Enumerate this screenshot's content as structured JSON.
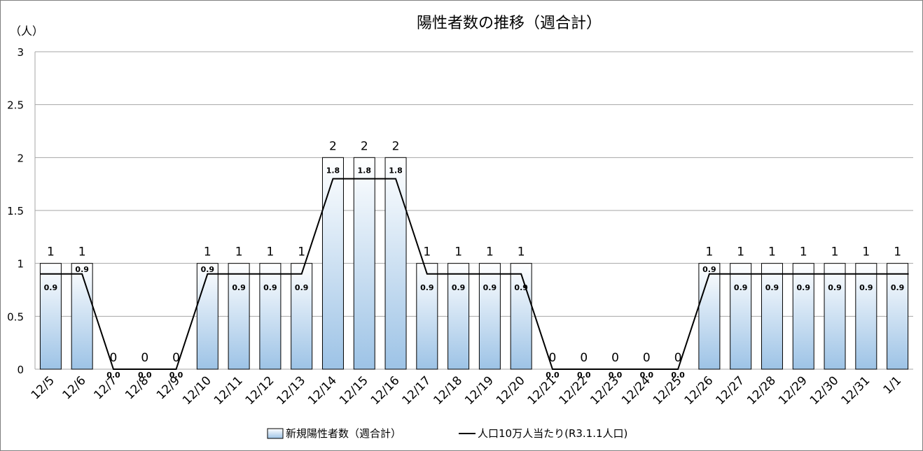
{
  "chart_data": {
    "type": "bar",
    "title": "陽性者数の推移（週合計）",
    "y_unit_label": "（人）",
    "ylim": [
      0,
      3
    ],
    "yticks": [
      "0",
      "0.5",
      "1",
      "1.5",
      "2",
      "2.5",
      "3"
    ],
    "grid": true,
    "legend_position": "bottom",
    "categories": [
      "12/5",
      "12/6",
      "12/7",
      "12/8",
      "12/9",
      "12/10",
      "12/11",
      "12/12",
      "12/13",
      "12/14",
      "12/15",
      "12/16",
      "12/17",
      "12/18",
      "12/19",
      "12/20",
      "12/21",
      "12/22",
      "12/23",
      "12/24",
      "12/25",
      "12/26",
      "12/27",
      "12/28",
      "12/29",
      "12/30",
      "12/31",
      "1/1"
    ],
    "series": [
      {
        "name": "新規陽性者数（週合計）",
        "kind": "bar",
        "values": [
          1,
          1,
          0,
          0,
          0,
          1,
          1,
          1,
          1,
          2,
          2,
          2,
          1,
          1,
          1,
          1,
          0,
          0,
          0,
          0,
          0,
          1,
          1,
          1,
          1,
          1,
          1,
          1
        ],
        "labels": [
          "1",
          "1",
          "0",
          "0",
          "0",
          "1",
          "1",
          "1",
          "1",
          "2",
          "2",
          "2",
          "1",
          "1",
          "1",
          "1",
          "0",
          "0",
          "0",
          "0",
          "0",
          "1",
          "1",
          "1",
          "1",
          "1",
          "1",
          "1"
        ]
      },
      {
        "name": "人口10万人当たり(R3.1.1人口)",
        "kind": "line",
        "values": [
          0.9,
          0.9,
          0,
          0,
          0,
          0.9,
          0.9,
          0.9,
          0.9,
          1.8,
          1.8,
          1.8,
          0.9,
          0.9,
          0.9,
          0.9,
          0,
          0,
          0,
          0,
          0,
          0.9,
          0.9,
          0.9,
          0.9,
          0.9,
          0.9,
          0.9
        ],
        "labels": [
          "0.9",
          "0.9",
          "0.0",
          "0.0",
          "0.0",
          "0.9",
          "0.9",
          "0.9",
          "0.9",
          "1.8",
          "1.8",
          "1.8",
          "0.9",
          "0.9",
          "0.9",
          "0.9",
          "0.0",
          "0.0",
          "0.0",
          "0.0",
          "0.0",
          "0.9",
          "0.9",
          "0.9",
          "0.9",
          "0.9",
          "0.9",
          "0.9"
        ]
      }
    ],
    "colors": {
      "bar_top": "#ffffff",
      "bar_bottom": "#9dc3e6",
      "bar_border": "#000000",
      "line": "#000000",
      "grid": "#a6a6a6"
    }
  }
}
